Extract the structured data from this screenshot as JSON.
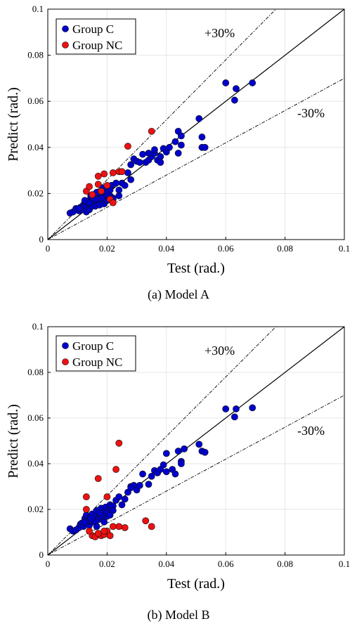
{
  "chart_data": [
    {
      "type": "scatter",
      "caption": "(a) Model A",
      "xlabel": "Test (rad.)",
      "ylabel": "Predict (rad.)",
      "xlim": [
        0,
        0.1
      ],
      "ylim": [
        0,
        0.1
      ],
      "xticks": [
        "0",
        "0.02",
        "0.04",
        "0.06",
        "0.08",
        "0.1"
      ],
      "yticks": [
        "0",
        "0.02",
        "0.04",
        "0.06",
        "0.08",
        "0.1"
      ],
      "grid": true,
      "legend_position": "top-left",
      "reference_lines": [
        {
          "label": "",
          "slope": 1.0,
          "style": "solid"
        },
        {
          "label": "+30%",
          "slope": 1.3,
          "style": "dash-dot"
        },
        {
          "label": "-30%",
          "slope": 0.7,
          "style": "dash-dot"
        }
      ],
      "series": [
        {
          "name": "Group C",
          "color": "#0000cc",
          "x": [
            0.0075,
            0.0085,
            0.0095,
            0.0105,
            0.011,
            0.0115,
            0.012,
            0.0125,
            0.013,
            0.013,
            0.0135,
            0.014,
            0.014,
            0.0145,
            0.015,
            0.015,
            0.0155,
            0.016,
            0.016,
            0.0165,
            0.017,
            0.017,
            0.0175,
            0.018,
            0.018,
            0.0185,
            0.019,
            0.019,
            0.0195,
            0.02,
            0.02,
            0.0205,
            0.021,
            0.021,
            0.0215,
            0.022,
            0.023,
            0.024,
            0.025,
            0.026,
            0.027,
            0.028,
            0.029,
            0.03,
            0.031,
            0.032,
            0.033,
            0.034,
            0.035,
            0.036,
            0.037,
            0.038,
            0.039,
            0.04,
            0.041,
            0.043,
            0.044,
            0.045,
            0.045,
            0.051,
            0.052,
            0.052,
            0.053,
            0.06,
            0.063,
            0.0635,
            0.069,
            0.016,
            0.018,
            0.02,
            0.022,
            0.024,
            0.014,
            0.0165,
            0.019,
            0.0105,
            0.0125,
            0.0145,
            0.0175,
            0.0185,
            0.021,
            0.034,
            0.036,
            0.038,
            0.044,
            0.028
          ],
          "y": [
            0.0115,
            0.012,
            0.0135,
            0.0125,
            0.014,
            0.013,
            0.015,
            0.0165,
            0.012,
            0.0145,
            0.016,
            0.013,
            0.017,
            0.015,
            0.0145,
            0.018,
            0.016,
            0.0145,
            0.0195,
            0.018,
            0.016,
            0.0205,
            0.0175,
            0.019,
            0.0165,
            0.021,
            0.0185,
            0.0155,
            0.02,
            0.022,
            0.017,
            0.0195,
            0.0215,
            0.019,
            0.0235,
            0.018,
            0.0245,
            0.0215,
            0.0245,
            0.0235,
            0.029,
            0.0325,
            0.035,
            0.034,
            0.0335,
            0.037,
            0.0335,
            0.0345,
            0.036,
            0.0375,
            0.0345,
            0.036,
            0.0395,
            0.038,
            0.04,
            0.0425,
            0.047,
            0.045,
            0.041,
            0.0525,
            0.0445,
            0.04,
            0.04,
            0.068,
            0.0605,
            0.0655,
            0.068,
            0.0175,
            0.018,
            0.0195,
            0.0175,
            0.019,
            0.016,
            0.0205,
            0.021,
            0.0135,
            0.017,
            0.019,
            0.015,
            0.0225,
            0.0175,
            0.0375,
            0.039,
            0.0335,
            0.0375,
            0.026
          ]
        },
        {
          "name": "Group NC",
          "color": "#ee1111",
          "x": [
            0.013,
            0.014,
            0.015,
            0.017,
            0.018,
            0.019,
            0.02,
            0.021,
            0.022,
            0.022,
            0.024,
            0.027,
            0.035,
            0.017,
            0.025
          ],
          "y": [
            0.021,
            0.023,
            0.0195,
            0.0275,
            0.021,
            0.0285,
            0.0235,
            0.0175,
            0.029,
            0.016,
            0.0295,
            0.0405,
            0.047,
            0.024,
            0.0295
          ]
        }
      ]
    },
    {
      "type": "scatter",
      "caption": "(b) Model B",
      "xlabel": "Test (rad.)",
      "ylabel": "Predict (rad.)",
      "xlim": [
        0,
        0.1
      ],
      "ylim": [
        0,
        0.1
      ],
      "xticks": [
        "0",
        "0.02",
        "0.04",
        "0.06",
        "0.08",
        "0.1"
      ],
      "yticks": [
        "0",
        "0.02",
        "0.04",
        "0.06",
        "0.08",
        "0.1"
      ],
      "grid": true,
      "legend_position": "top-left",
      "reference_lines": [
        {
          "label": "",
          "slope": 1.0,
          "style": "solid"
        },
        {
          "label": "+30%",
          "slope": 1.3,
          "style": "dash-dot"
        },
        {
          "label": "-30%",
          "slope": 0.7,
          "style": "dash-dot"
        }
      ],
      "series": [
        {
          "name": "Group C",
          "color": "#0000cc",
          "x": [
            0.0075,
            0.0085,
            0.0095,
            0.0105,
            0.011,
            0.0115,
            0.012,
            0.0125,
            0.013,
            0.0135,
            0.014,
            0.0145,
            0.015,
            0.0155,
            0.016,
            0.0165,
            0.017,
            0.0175,
            0.018,
            0.0185,
            0.019,
            0.0195,
            0.02,
            0.0205,
            0.021,
            0.022,
            0.023,
            0.024,
            0.025,
            0.026,
            0.027,
            0.028,
            0.029,
            0.03,
            0.032,
            0.034,
            0.035,
            0.036,
            0.037,
            0.038,
            0.039,
            0.04,
            0.042,
            0.044,
            0.045,
            0.046,
            0.051,
            0.052,
            0.053,
            0.06,
            0.063,
            0.0635,
            0.069,
            0.016,
            0.018,
            0.02,
            0.022,
            0.014,
            0.0165,
            0.019,
            0.0125,
            0.0145,
            0.0175,
            0.021,
            0.04,
            0.043,
            0.045,
            0.028,
            0.031
          ],
          "y": [
            0.0115,
            0.0105,
            0.011,
            0.012,
            0.0135,
            0.014,
            0.0125,
            0.016,
            0.0175,
            0.015,
            0.013,
            0.0165,
            0.018,
            0.0145,
            0.017,
            0.0195,
            0.0155,
            0.018,
            0.0205,
            0.0165,
            0.0185,
            0.021,
            0.017,
            0.0195,
            0.022,
            0.0215,
            0.024,
            0.0255,
            0.022,
            0.0245,
            0.0275,
            0.03,
            0.0305,
            0.0285,
            0.0355,
            0.031,
            0.0345,
            0.037,
            0.036,
            0.0375,
            0.0395,
            0.0445,
            0.0375,
            0.0455,
            0.041,
            0.0465,
            0.0485,
            0.0455,
            0.045,
            0.064,
            0.0605,
            0.064,
            0.0645,
            0.0145,
            0.0175,
            0.0185,
            0.0195,
            0.015,
            0.0125,
            0.0145,
            0.0145,
            0.016,
            0.0185,
            0.0175,
            0.0365,
            0.0355,
            0.04,
            0.0295,
            0.0305
          ]
        },
        {
          "name": "Group NC",
          "color": "#ee1111",
          "x": [
            0.013,
            0.013,
            0.015,
            0.016,
            0.017,
            0.018,
            0.019,
            0.02,
            0.02,
            0.021,
            0.023,
            0.024,
            0.024,
            0.026,
            0.033,
            0.035,
            0.014,
            0.017,
            0.019,
            0.022
          ],
          "y": [
            0.0255,
            0.02,
            0.0085,
            0.008,
            0.0335,
            0.0085,
            0.009,
            0.0105,
            0.0255,
            0.0085,
            0.0375,
            0.049,
            0.0125,
            0.012,
            0.015,
            0.0125,
            0.0105,
            0.0095,
            0.0105,
            0.0125
          ]
        }
      ]
    }
  ]
}
